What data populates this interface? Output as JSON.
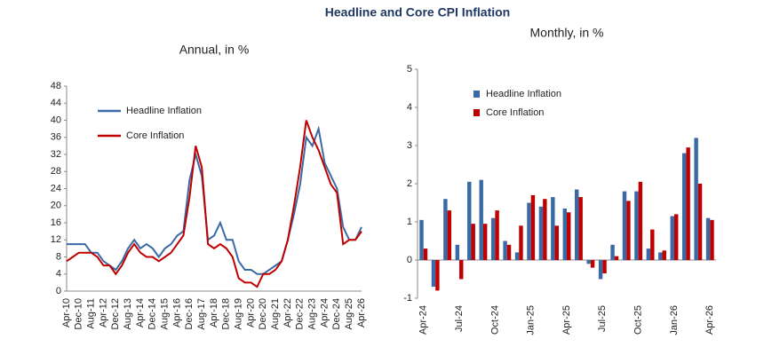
{
  "title": "Headline and Core CPI Inflation",
  "chart_data": [
    {
      "type": "line",
      "title": "Annual, in %",
      "categories": [
        "Apr-10",
        null,
        "Dec-10",
        null,
        "Aug-11",
        null,
        "Apr-12",
        null,
        "Dec-12",
        null,
        "Aug-13",
        null,
        "Apr-14",
        null,
        "Dec-14",
        null,
        "Aug-15",
        null,
        "Apr-16",
        null,
        "Dec-16",
        null,
        "Aug-17",
        null,
        "Apr-18",
        null,
        "Dec-18",
        null,
        "Aug-19",
        null,
        "Apr-20",
        null,
        "Dec-20",
        null,
        "Aug-21",
        null,
        "Apr-22",
        null,
        "Dec-22",
        null,
        "Aug-23",
        null,
        "Apr-24",
        null,
        "Dec-24",
        null,
        "Aug-25",
        null,
        "Apr-26"
      ],
      "series": [
        {
          "name": "Headline Inflation",
          "color": "#3a6aa6",
          "values": [
            11,
            11,
            11,
            11,
            9,
            9,
            7,
            6,
            5,
            7,
            10,
            12,
            10,
            11,
            10,
            8,
            10,
            11,
            13,
            14,
            26,
            32,
            27,
            12,
            13,
            16,
            12,
            12,
            7,
            5,
            5,
            4,
            4,
            5,
            6,
            7,
            12,
            18,
            25,
            36,
            34,
            38,
            30,
            27,
            24,
            15,
            12,
            12,
            15
          ]
        },
        {
          "name": "Core Inflation",
          "color": "#c00000",
          "values": [
            7,
            8,
            9,
            9,
            9,
            8,
            6,
            6,
            4,
            6,
            9,
            11,
            9,
            8,
            8,
            7,
            8,
            9,
            11,
            13,
            22,
            34,
            29,
            11,
            10,
            11,
            10,
            8,
            3,
            2,
            2,
            1,
            4,
            4,
            5,
            7,
            12,
            20,
            29,
            40,
            36,
            33,
            29,
            25,
            23,
            11,
            12,
            12,
            14
          ]
        }
      ],
      "ylim": [
        0,
        48
      ],
      "yticks": [
        0,
        4,
        8,
        12,
        16,
        20,
        24,
        28,
        32,
        36,
        40,
        44,
        48
      ],
      "legend": "upper left"
    },
    {
      "type": "bar",
      "title": "Monthly, in %",
      "categories": [
        "Apr-24",
        null,
        null,
        "Jul-24",
        null,
        null,
        "Oct-24",
        null,
        null,
        "Jan-25",
        null,
        null,
        "Apr-25",
        null,
        null,
        "Jul-25",
        null,
        null,
        "Oct-25",
        null,
        null,
        "Jan-26",
        null,
        null,
        "Apr-26"
      ],
      "series": [
        {
          "name": "Headline Inflation",
          "color": "#3a6aa6",
          "values": [
            1.05,
            -0.7,
            1.6,
            0.4,
            2.05,
            2.1,
            1.1,
            0.5,
            0.2,
            1.5,
            1.4,
            1.65,
            1.35,
            1.85,
            -0.1,
            -0.5,
            0.4,
            1.8,
            1.8,
            0.3,
            0.2,
            1.15,
            2.8,
            3.2,
            1.1
          ]
        },
        {
          "name": "Core Inflation",
          "color": "#c00000",
          "values": [
            0.3,
            -0.8,
            1.3,
            -0.5,
            0.95,
            0.95,
            1.3,
            0.4,
            0.9,
            1.7,
            1.6,
            0.9,
            1.25,
            1.65,
            -0.2,
            -0.35,
            0.1,
            1.55,
            2.05,
            0.8,
            0.25,
            1.2,
            2.95,
            2.0,
            1.05
          ]
        }
      ],
      "ylim": [
        -1,
        5
      ],
      "yticks": [
        -1,
        0,
        1,
        2,
        3,
        4,
        5
      ],
      "legend": "upper left"
    }
  ]
}
